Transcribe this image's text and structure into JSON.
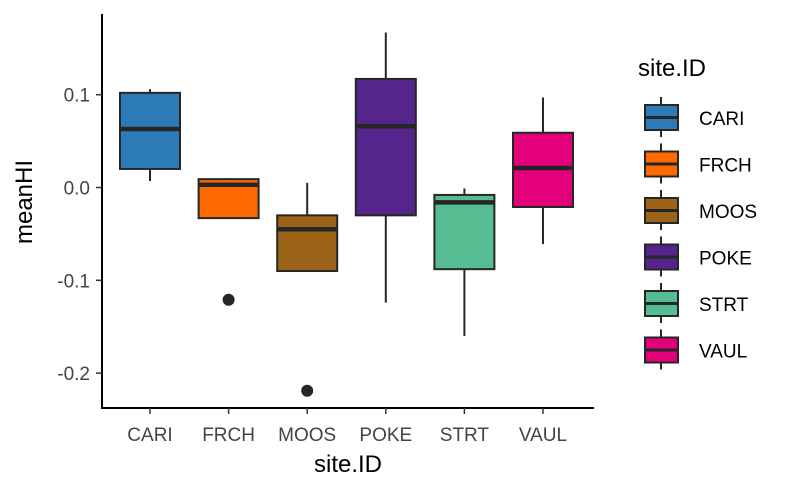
{
  "chart_data": {
    "type": "boxplot",
    "xlabel": "site.ID",
    "ylabel": "meanHI",
    "ylim": [
      -0.23,
      0.19
    ],
    "yticks": [
      0.1,
      0.0,
      -0.1,
      -0.2
    ],
    "ytick_labels": [
      "0.1",
      "0.0",
      "-0.1",
      "-0.2"
    ],
    "grid": false,
    "legend": {
      "title": "site.ID",
      "placement": "right"
    },
    "categories": [
      "CARI",
      "FRCH",
      "MOOS",
      "POKE",
      "STRT",
      "VAUL"
    ],
    "boxes": [
      {
        "name": "CARI",
        "color": "#2C7BB6",
        "whisker_low": 0.007,
        "q1": 0.02,
        "median": 0.063,
        "q3": 0.102,
        "whisker_high": 0.106,
        "outliers": []
      },
      {
        "name": "FRCH",
        "color": "#FF6A00",
        "whisker_low": -0.033,
        "q1": -0.033,
        "median": 0.003,
        "q3": 0.009,
        "whisker_high": 0.01,
        "outliers": [
          -0.121
        ]
      },
      {
        "name": "MOOS",
        "color": "#9A6318",
        "whisker_low": -0.09,
        "q1": -0.09,
        "median": -0.045,
        "q3": -0.03,
        "whisker_high": 0.005,
        "outliers": [
          -0.219
        ]
      },
      {
        "name": "POKE",
        "color": "#55258C",
        "whisker_low": -0.124,
        "q1": -0.03,
        "median": 0.066,
        "q3": 0.117,
        "whisker_high": 0.167,
        "outliers": []
      },
      {
        "name": "STRT",
        "color": "#56BC92",
        "whisker_low": -0.16,
        "q1": -0.088,
        "median": -0.016,
        "q3": -0.008,
        "whisker_high": -0.001,
        "outliers": []
      },
      {
        "name": "VAUL",
        "color": "#E3007A",
        "whisker_low": -0.061,
        "q1": -0.021,
        "median": 0.021,
        "q3": 0.059,
        "whisker_high": 0.097,
        "outliers": []
      }
    ]
  }
}
